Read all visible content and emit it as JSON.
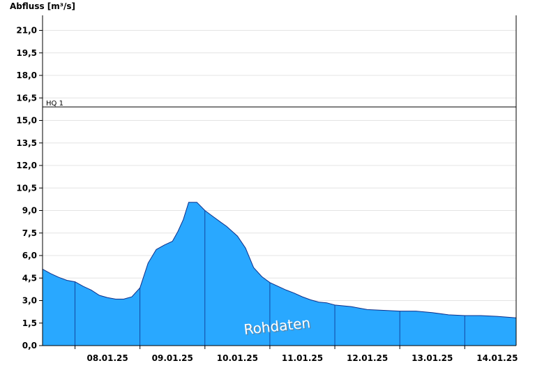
{
  "chart_data": {
    "type": "area",
    "ylabel": "Abfluss [m³/s]",
    "ylim": [
      0,
      22
    ],
    "y_ticks": [
      "0,0",
      "1,5",
      "3,0",
      "4,5",
      "6,0",
      "7,5",
      "9,0",
      "10,5",
      "12,0",
      "13,5",
      "15,0",
      "16,5",
      "18,0",
      "19,5",
      "21,0"
    ],
    "y_tick_values": [
      0,
      1.5,
      3.0,
      4.5,
      6.0,
      7.5,
      9.0,
      10.5,
      12.0,
      13.5,
      15.0,
      16.5,
      18.0,
      19.5,
      21.0
    ],
    "x_ticks": [
      "08.01.25",
      "09.01.25",
      "10.01.25",
      "11.01.25",
      "12.01.25",
      "13.01.25",
      "14.01.25"
    ],
    "xlim": [
      "07.01.25 12:00",
      "14.01.25 19:00"
    ],
    "grid": true,
    "threshold": {
      "label": "HQ 1",
      "value": 15.9
    },
    "watermark": "Rohdaten",
    "colors": {
      "fill": "#29a8ff",
      "stroke": "#0d2f8a",
      "grid": "#e4e4e4",
      "threshold": "#000000"
    },
    "series": [
      {
        "x": [
          "07.01.25 12:00",
          "07.01.25 15:00",
          "07.01.25 18:00",
          "07.01.25 21:00",
          "08.01.25 00:00",
          "08.01.25 03:00",
          "08.01.25 06:00",
          "08.01.25 09:00",
          "08.01.25 12:00",
          "08.01.25 15:00",
          "08.01.25 18:00",
          "08.01.25 21:00",
          "09.01.25 00:00",
          "09.01.25 03:00",
          "09.01.25 06:00",
          "09.01.25 09:00",
          "09.01.25 12:00",
          "09.01.25 14:00",
          "09.01.25 16:00",
          "09.01.25 18:00",
          "09.01.25 21:00",
          "10.01.25 00:00",
          "10.01.25 03:00",
          "10.01.25 06:00",
          "10.01.25 08:00",
          "10.01.25 12:00",
          "10.01.25 15:00",
          "10.01.25 18:00",
          "10.01.25 21:00",
          "11.01.25 00:00",
          "11.01.25 03:00",
          "11.01.25 06:00",
          "11.01.25 09:00",
          "11.01.25 12:00",
          "11.01.25 15:00",
          "11.01.25 18:00",
          "11.01.25 21:00",
          "12.01.25 00:00",
          "12.01.25 06:00",
          "12.01.25 12:00",
          "12.01.25 18:00",
          "13.01.25 00:00",
          "13.01.25 06:00",
          "13.01.25 12:00",
          "13.01.25 18:00",
          "14.01.25 00:00",
          "14.01.25 06:00",
          "14.01.25 12:00",
          "14.01.25 19:00"
        ],
        "values": [
          5.1,
          4.8,
          4.55,
          4.35,
          4.25,
          3.95,
          3.7,
          3.35,
          3.2,
          3.1,
          3.1,
          3.25,
          3.85,
          5.5,
          6.4,
          6.7,
          6.95,
          7.6,
          8.4,
          9.55,
          9.55,
          9.0,
          8.6,
          8.2,
          7.95,
          7.3,
          6.5,
          5.2,
          4.6,
          4.2,
          3.95,
          3.7,
          3.5,
          3.25,
          3.05,
          2.9,
          2.85,
          2.7,
          2.6,
          2.4,
          2.35,
          2.3,
          2.3,
          2.2,
          2.05,
          2.0,
          2.0,
          1.95,
          1.85
        ]
      }
    ]
  }
}
